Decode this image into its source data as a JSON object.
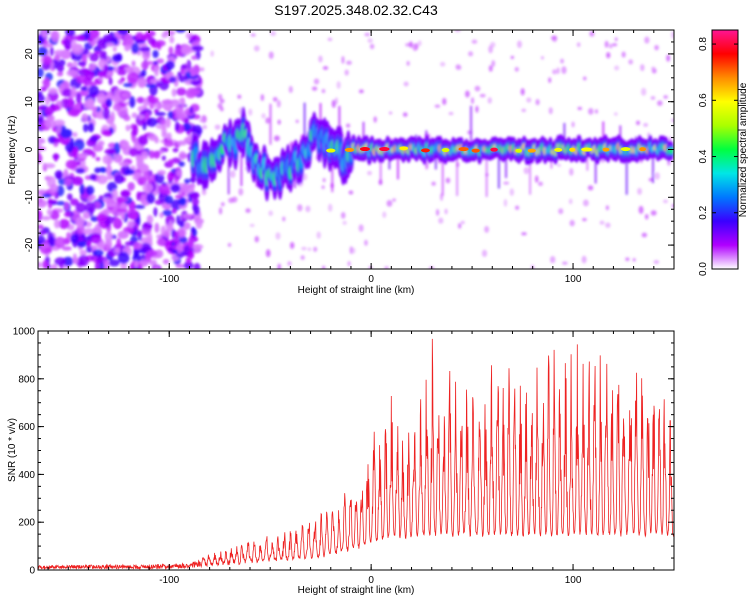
{
  "figure_title": "S197.2025.348.02.32.C43",
  "chart_data": [
    {
      "type": "heatmap",
      "name": "spectrogram",
      "title": "S197.2025.348.02.32.C43",
      "xlabel": "Height of straight line (km)",
      "ylabel": "Frequency (Hz)",
      "xlim": [
        -165,
        150
      ],
      "ylim": [
        -25,
        25
      ],
      "xticks": [
        -100,
        0,
        100
      ],
      "xtick_labels": [
        "-100",
        "0",
        "100"
      ],
      "yticks": [
        -20,
        -10,
        0,
        10,
        20
      ],
      "ytick_labels": [
        "-20",
        "-10",
        "0",
        "10",
        "20"
      ],
      "colorbar": {
        "label": "Normalized spectral amplitude",
        "range": [
          0,
          0.85
        ],
        "ticks": [
          0.0,
          0.2,
          0.4,
          0.6,
          0.8
        ],
        "tick_labels": [
          "0.0",
          "0.2",
          "0.4",
          "0.6",
          "0.8"
        ],
        "colors": [
          "#ffffff",
          "#b000ff",
          "#3a00ff",
          "#0078ff",
          "#00e6e6",
          "#00ff40",
          "#aaff00",
          "#ffff00",
          "#ff8c00",
          "#ff0000",
          "#ff1493"
        ]
      },
      "band": {
        "frequency_hz": 0,
        "start_km": -88,
        "peak_amplitude": 0.82,
        "typical_amplitude": 0.35
      },
      "noise_region_km": [
        -165,
        -85
      ]
    },
    {
      "type": "line",
      "name": "snr",
      "xlabel": "Height of straight line (km)",
      "ylabel": "SNR (10 * v/v)",
      "xlim": [
        -165,
        150
      ],
      "ylim": [
        0,
        1000
      ],
      "xticks": [
        -100,
        0,
        100
      ],
      "xtick_labels": [
        "-100",
        "0",
        "100"
      ],
      "yticks": [
        0,
        200,
        400,
        600,
        800,
        1000
      ],
      "ytick_labels": [
        "0",
        "200",
        "400",
        "600",
        "800",
        "1000"
      ],
      "color": "#ee2222",
      "series": [
        {
          "name": "SNR",
          "x": [
            -165,
            -150,
            -135,
            -120,
            -105,
            -90,
            -80,
            -70,
            -60,
            -50,
            -40,
            -35,
            -30,
            -25,
            -20,
            -15,
            -10,
            -5,
            0,
            5,
            10,
            15,
            20,
            25,
            30,
            35,
            40,
            45,
            50,
            55,
            60,
            65,
            70,
            75,
            80,
            85,
            90,
            95,
            100,
            105,
            110,
            115,
            120,
            125,
            130,
            135,
            140,
            145,
            150
          ],
          "envelope": [
            20,
            20,
            22,
            20,
            25,
            30,
            60,
            90,
            110,
            140,
            170,
            210,
            220,
            240,
            260,
            300,
            350,
            420,
            560,
            600,
            800,
            620,
            700,
            760,
            1000,
            740,
            860,
            800,
            900,
            760,
            920,
            880,
            860,
            900,
            940,
            860,
            960,
            900,
            1000,
            880,
            960,
            920,
            900,
            980,
            940,
            860,
            840,
            820,
            600
          ],
          "baseline": [
            5,
            5,
            5,
            5,
            5,
            8,
            15,
            20,
            25,
            30,
            35,
            40,
            45,
            50,
            60,
            70,
            80,
            90,
            110,
            120,
            130,
            130,
            130,
            140,
            140,
            140,
            140,
            140,
            140,
            140,
            140,
            140,
            140,
            140,
            140,
            140,
            140,
            140,
            140,
            140,
            140,
            140,
            140,
            140,
            140,
            140,
            140,
            140,
            140
          ]
        }
      ]
    }
  ]
}
